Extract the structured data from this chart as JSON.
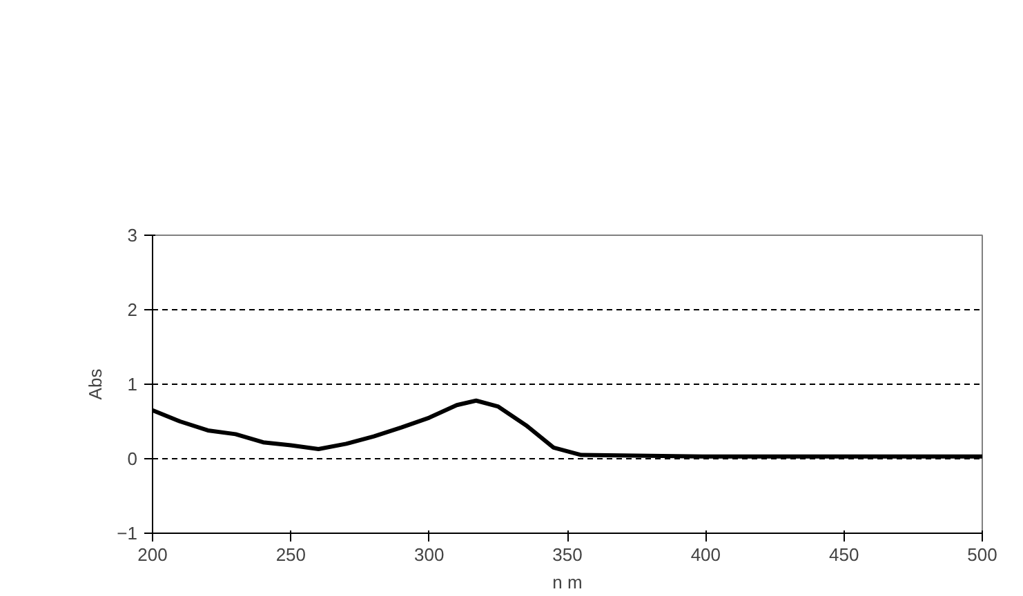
{
  "chart_data": {
    "type": "line",
    "xlabel": "n m",
    "ylabel": "Abs",
    "x": [
      200,
      210,
      220,
      230,
      240,
      250,
      260,
      270,
      280,
      290,
      300,
      310,
      317,
      325,
      335,
      345,
      355,
      400,
      450,
      500
    ],
    "series": [
      {
        "color": "#000000",
        "values": [
          0.65,
          0.5,
          0.38,
          0.33,
          0.22,
          0.18,
          0.13,
          0.2,
          0.3,
          0.42,
          0.55,
          0.72,
          0.78,
          0.7,
          0.45,
          0.15,
          0.05,
          0.03,
          0.03,
          0.03
        ]
      }
    ],
    "xlim": [
      200,
      500
    ],
    "xticks": [
      200,
      250,
      300,
      350,
      400,
      450,
      500
    ],
    "ylim": [
      -1,
      3
    ],
    "yticks": [
      -1,
      0,
      1,
      2,
      3
    ],
    "grid": "y",
    "marker": "none",
    "line_style": "solid"
  }
}
